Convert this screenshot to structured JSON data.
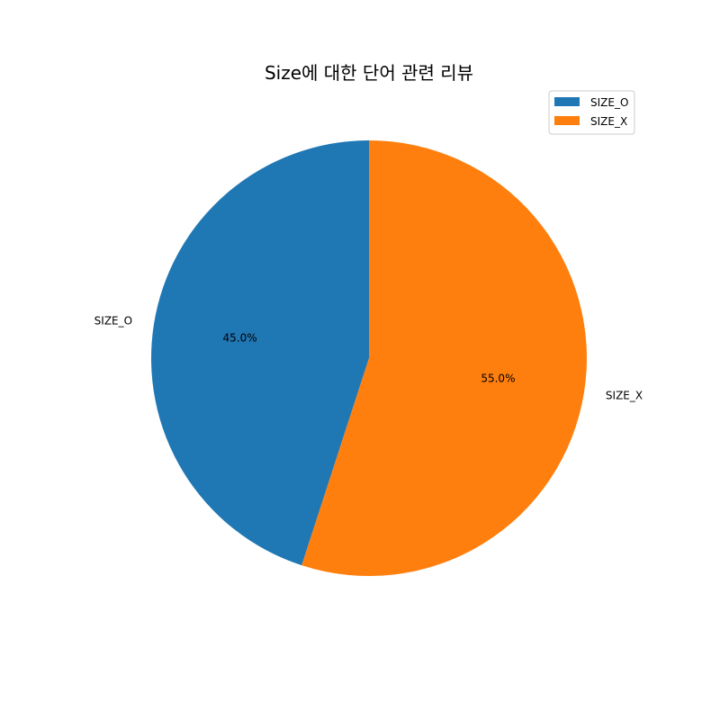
{
  "chart_data": {
    "type": "pie",
    "title": "Size에 대한 단어 관련 리뷰",
    "categories": [
      "SIZE_O",
      "SIZE_X"
    ],
    "values": [
      45.0,
      55.0
    ],
    "percent_labels": [
      "45.0%",
      "55.0%"
    ],
    "colors": [
      "#1f77b4",
      "#ff7f0e"
    ],
    "start_angle_deg": 90,
    "direction": "counterclockwise",
    "legend": {
      "position": "top-right",
      "entries": [
        "SIZE_O",
        "SIZE_X"
      ]
    }
  }
}
